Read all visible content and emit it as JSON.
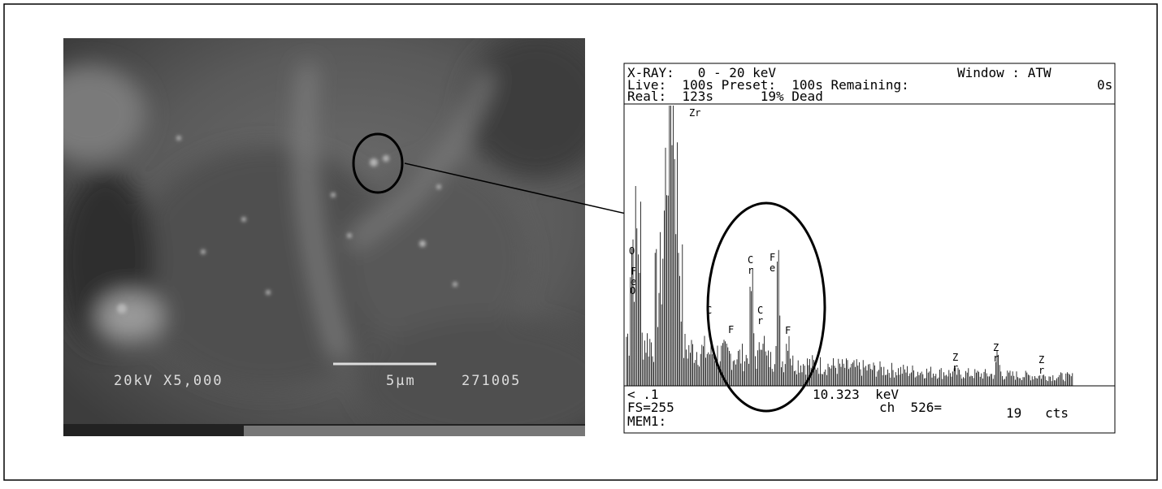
{
  "sem_image": {
    "voltage_mag": "20kV X5,000",
    "scale_bar": "5µm",
    "image_id": "271005"
  },
  "spectrum": {
    "header": [
      "X-RAY:   0 - 20 keV",
      "Window : ATW",
      "Live:  100s Preset:  100s Remaining:",
      "0s",
      "Real:  123s      19% Dead"
    ],
    "peaks": [
      "Zr",
      "O",
      "F e",
      "O",
      "C",
      "F",
      "C r",
      "C r",
      "F e",
      "F",
      "Z r",
      "Z r",
      "Z r"
    ],
    "footer": [
      "< .1",
      "10.323  keV",
      "FS=255",
      "ch  526=",
      "19   cts",
      "MEM1:"
    ]
  }
}
